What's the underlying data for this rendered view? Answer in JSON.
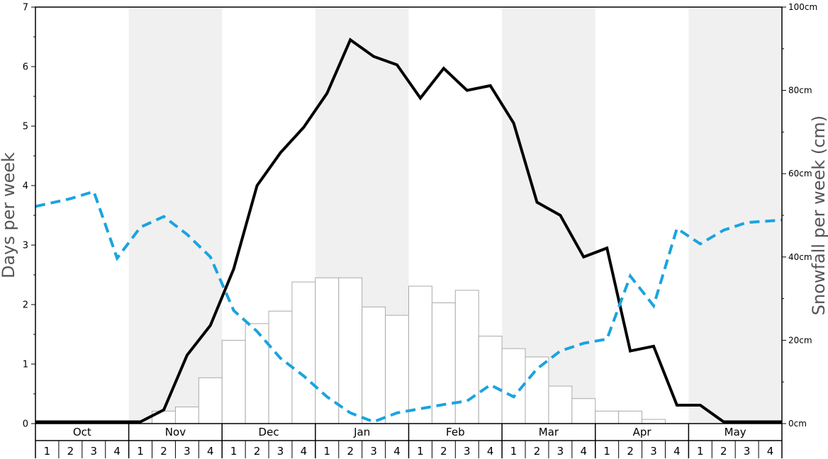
{
  "chart_data": {
    "type": "bar",
    "months": [
      "Oct",
      "Nov",
      "Dec",
      "Jan",
      "Feb",
      "Mar",
      "Apr",
      "May"
    ],
    "week_labels": [
      "1",
      "2",
      "3",
      "4"
    ],
    "ylabel": "Days per week",
    "y2label": "Snowfall per week (cm)",
    "ylim": [
      0,
      7
    ],
    "y_ticks": [
      "0",
      "1",
      "2",
      "3",
      "4",
      "5",
      "6",
      "7"
    ],
    "y2lim": [
      0,
      100
    ],
    "y2_ticks": [
      "0cm",
      "20cm",
      "40cm",
      "60cm",
      "80cm",
      "100cm"
    ],
    "grid": false,
    "colors": {
      "band": "#f0f0f0",
      "bar_fill": "#ffffff",
      "bar_stroke": "#aaaaaa",
      "solid_line": "#000000",
      "dashed_line": "#1aa3e0",
      "axis_title": "#555555"
    },
    "series": [
      {
        "kind": "bar",
        "axis": "right",
        "values": [
          0,
          0,
          0,
          0,
          0,
          3,
          4,
          11,
          20,
          24,
          27,
          34,
          35,
          35,
          28,
          26,
          33,
          29,
          32,
          21,
          18,
          16,
          9,
          6,
          3,
          3,
          1,
          0,
          0,
          0,
          0,
          0
        ]
      },
      {
        "kind": "line",
        "style": "solid",
        "axis": "left",
        "values": [
          0.03,
          0.03,
          0.03,
          0.03,
          0.03,
          0.23,
          1.15,
          1.65,
          2.6,
          4.0,
          4.55,
          4.98,
          5.55,
          6.45,
          6.17,
          6.03,
          5.47,
          5.97,
          5.6,
          5.68,
          5.05,
          3.72,
          3.5,
          2.8,
          2.95,
          1.22,
          1.3,
          0.31,
          0.31,
          0.03,
          0.03,
          0.03
        ]
      },
      {
        "kind": "line",
        "style": "dashed",
        "axis": "left",
        "values": [
          3.65,
          3.78,
          3.9,
          2.78,
          3.3,
          3.48,
          3.18,
          2.8,
          1.9,
          1.55,
          1.1,
          0.8,
          0.45,
          0.18,
          0.03,
          0.18,
          0.25,
          0.32,
          0.38,
          0.65,
          0.45,
          0.92,
          1.22,
          1.35,
          1.42,
          2.48,
          1.98,
          3.28,
          3.02,
          3.25,
          3.38,
          3.42
        ]
      }
    ]
  }
}
